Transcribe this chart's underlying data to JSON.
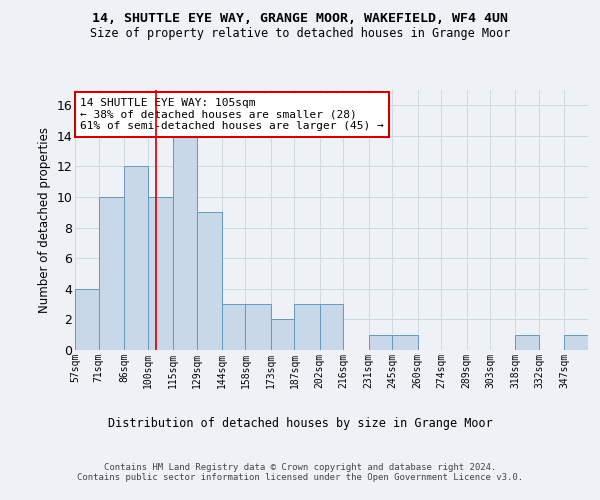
{
  "title1": "14, SHUTTLE EYE WAY, GRANGE MOOR, WAKEFIELD, WF4 4UN",
  "title2": "Size of property relative to detached houses in Grange Moor",
  "xlabel": "Distribution of detached houses by size in Grange Moor",
  "ylabel": "Number of detached properties",
  "bar_edges": [
    57,
    71,
    86,
    100,
    115,
    129,
    144,
    158,
    173,
    187,
    202,
    216,
    231,
    245,
    260,
    274,
    289,
    303,
    318,
    332,
    347
  ],
  "bar_heights": [
    4,
    10,
    12,
    10,
    14,
    9,
    3,
    3,
    2,
    3,
    3,
    0,
    1,
    1,
    0,
    0,
    0,
    0,
    1,
    0,
    1
  ],
  "bar_color": "#c8d8e8",
  "bar_edgecolor": "#6699bb",
  "subject_value": 105,
  "subject_label": "14 SHUTTLE EYE WAY: 105sqm",
  "annotation_line1": "← 38% of detached houses are smaller (28)",
  "annotation_line2": "61% of semi-detached houses are larger (45) →",
  "annotation_box_color": "#ffffff",
  "annotation_box_edgecolor": "#cc0000",
  "vline_color": "#cc0000",
  "grid_color": "#d0d8e0",
  "tick_labels": [
    "57sqm",
    "71sqm",
    "86sqm",
    "100sqm",
    "115sqm",
    "129sqm",
    "144sqm",
    "158sqm",
    "173sqm",
    "187sqm",
    "202sqm",
    "216sqm",
    "231sqm",
    "245sqm",
    "260sqm",
    "274sqm",
    "289sqm",
    "303sqm",
    "318sqm",
    "332sqm",
    "347sqm"
  ],
  "ylim": [
    0,
    17
  ],
  "yticks": [
    0,
    2,
    4,
    6,
    8,
    10,
    12,
    14,
    16
  ],
  "footer": "Contains HM Land Registry data © Crown copyright and database right 2024.\nContains public sector information licensed under the Open Government Licence v3.0.",
  "background_color": "#eef2f7"
}
